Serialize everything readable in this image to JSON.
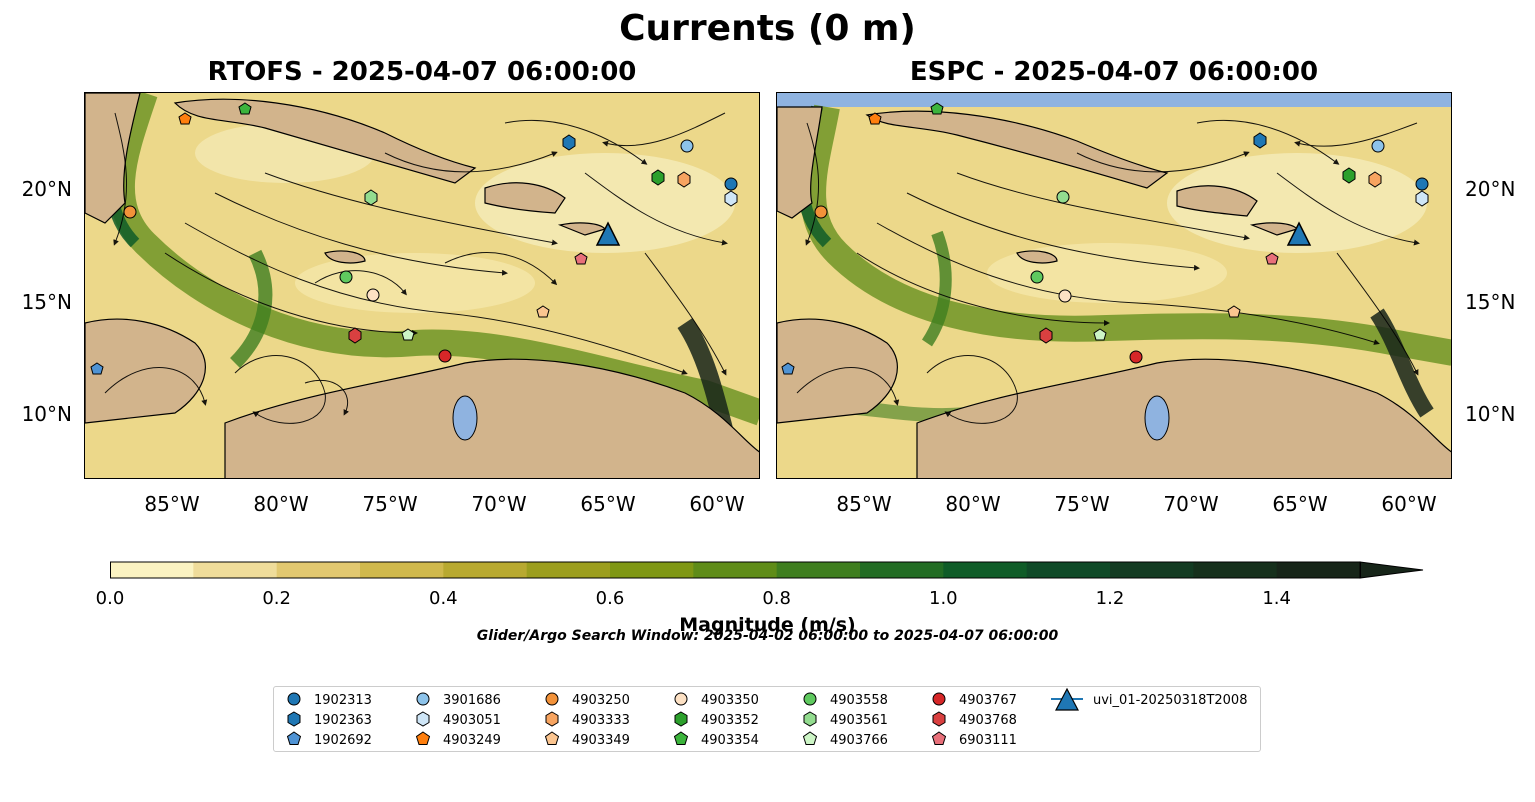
{
  "title": "Currents (0 m)",
  "panels": [
    {
      "title": "RTOFS - 2025-04-07 06:00:00"
    },
    {
      "title": "ESPC - 2025-04-07 06:00:00"
    }
  ],
  "axes": {
    "x_ticks": [
      "85°W",
      "80°W",
      "75°W",
      "70°W",
      "65°W",
      "60°W"
    ],
    "y_ticks": [
      "20°N",
      "15°N",
      "10°N"
    ]
  },
  "colorbar": {
    "label": "Magnitude (m/s)",
    "ticks": [
      "0.0",
      "0.2",
      "0.4",
      "0.6",
      "0.8",
      "1.0",
      "1.2",
      "1.4"
    ],
    "colors": [
      "#fbf3c2",
      "#efdc9a",
      "#e2c870",
      "#cfb84c",
      "#b8a930",
      "#9c9e1e",
      "#7f9714",
      "#5f8c18",
      "#3f7e1f",
      "#226c24",
      "#0f5c28",
      "#0f4a28",
      "#133b22",
      "#16301c",
      "#172519"
    ]
  },
  "search_window": "Glider/Argo Search Window: 2025-04-02 06:00:00 to 2025-04-07 06:00:00",
  "legend": [
    {
      "label": "1902313",
      "marker": "circle",
      "color": "#1f77b4"
    },
    {
      "label": "1902363",
      "marker": "hexagon",
      "color": "#1f77b4"
    },
    {
      "label": "1902692",
      "marker": "pentagon",
      "color": "#4f93d4"
    },
    {
      "label": "3901686",
      "marker": "circle",
      "color": "#8dc3ea"
    },
    {
      "label": "4903051",
      "marker": "hexagon",
      "color": "#cfe6f7"
    },
    {
      "label": "4903249",
      "marker": "pentagon",
      "color": "#ff7f0e"
    },
    {
      "label": "4903250",
      "marker": "circle",
      "color": "#f2923a"
    },
    {
      "label": "4903333",
      "marker": "hexagon",
      "color": "#f7a460"
    },
    {
      "label": "4903349",
      "marker": "pentagon",
      "color": "#fbc590"
    },
    {
      "label": "4903350",
      "marker": "circle",
      "color": "#fde1c4"
    },
    {
      "label": "4903352",
      "marker": "hexagon",
      "color": "#2ca02c"
    },
    {
      "label": "4903354",
      "marker": "pentagon",
      "color": "#3cb43c"
    },
    {
      "label": "4903558",
      "marker": "circle",
      "color": "#5fc95f"
    },
    {
      "label": "4903561",
      "marker": "hexagon",
      "color": "#93dc8f"
    },
    {
      "label": "4903766",
      "marker": "pentagon",
      "color": "#cdf5c6"
    },
    {
      "label": "4903767",
      "marker": "circle",
      "color": "#d62728"
    },
    {
      "label": "4903768",
      "marker": "hexagon",
      "color": "#d94040"
    },
    {
      "label": "6903111",
      "marker": "pentagon",
      "color": "#e8707a"
    },
    {
      "label": "uvi_01-20250318T2008",
      "marker": "triangle-line",
      "color": "#1f77b4"
    }
  ]
}
